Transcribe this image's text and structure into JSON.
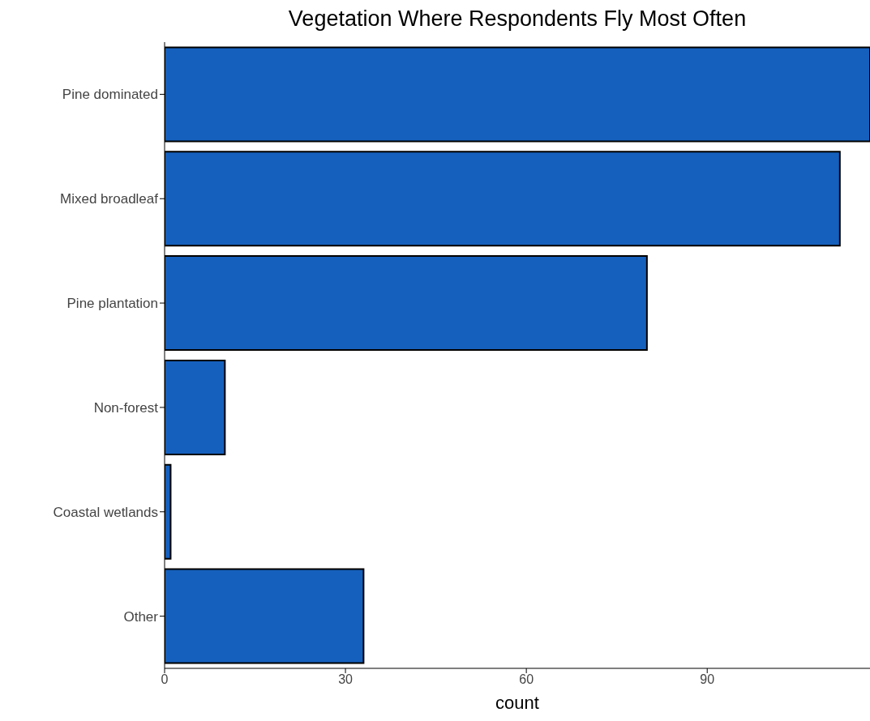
{
  "chart_data": {
    "type": "bar",
    "orientation": "horizontal",
    "title": "Vegetation Where Respondents Fly Most Often",
    "xlabel": "count",
    "categories": [
      "Pine dominated",
      "Mixed broadleaf",
      "Pine plantation",
      "Non-forest",
      "Coastal wetlands",
      "Other"
    ],
    "values": [
      117,
      112,
      80,
      10,
      1,
      33
    ],
    "color": "#1560bd",
    "xlim": [
      0,
      117
    ],
    "xticks": [
      0,
      30,
      60,
      90
    ],
    "grid": false
  }
}
